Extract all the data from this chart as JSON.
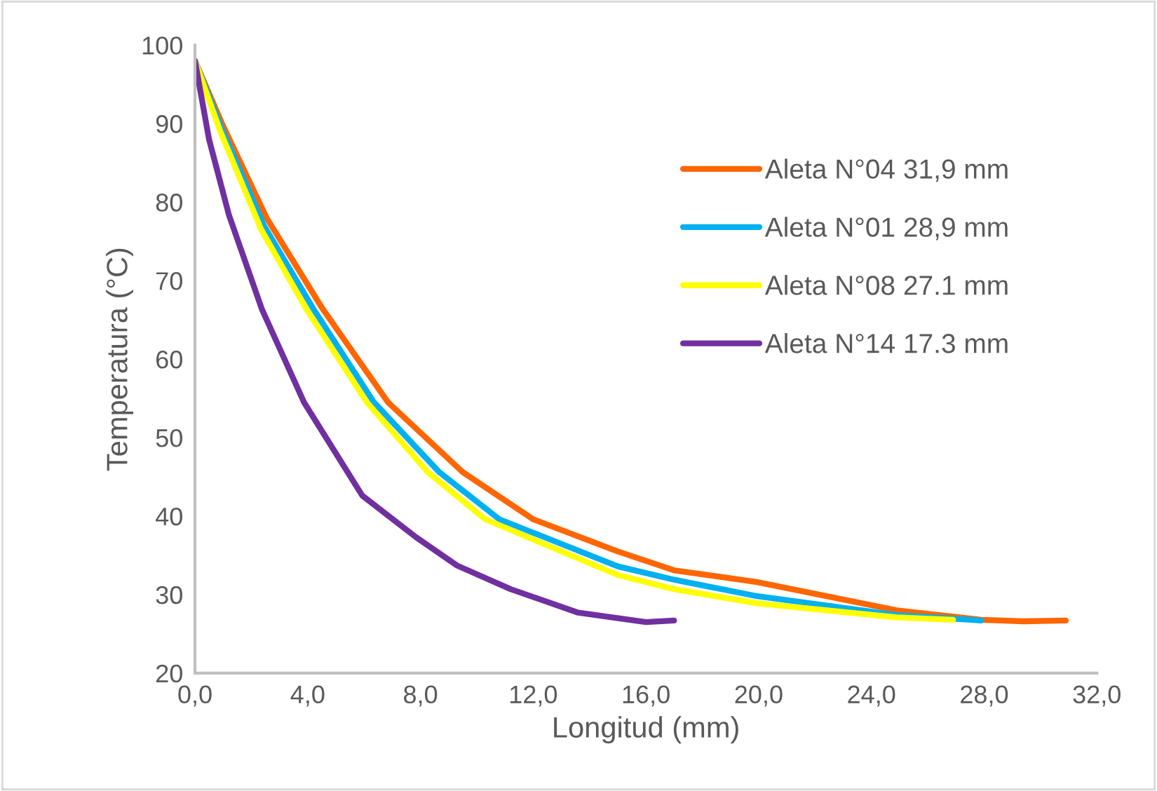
{
  "chart_data": {
    "type": "line",
    "xlabel": "Longitud (mm)",
    "ylabel": "Temperatura (°C)",
    "xlim": [
      0,
      32
    ],
    "ylim": [
      20,
      100
    ],
    "xticks": [
      {
        "value": 0,
        "label": "0,0"
      },
      {
        "value": 4,
        "label": "4,0"
      },
      {
        "value": 8,
        "label": "8,0"
      },
      {
        "value": 12,
        "label": "12,0"
      },
      {
        "value": 16,
        "label": "16,0"
      },
      {
        "value": 20,
        "label": "20,0"
      },
      {
        "value": 24,
        "label": "24,0"
      },
      {
        "value": 28,
        "label": "28,0"
      },
      {
        "value": 32,
        "label": "32,0"
      }
    ],
    "yticks": [
      20,
      30,
      40,
      50,
      60,
      70,
      80,
      90,
      100
    ],
    "grid": false,
    "legend": "right",
    "marker": "none",
    "line_style": "solid",
    "series": [
      {
        "name": "Aleta N°04 31,9 mm",
        "color": "#ff6600",
        "x": [
          0,
          0.96,
          2.54,
          4.53,
          6.85,
          9.5,
          12.0,
          15.0,
          17.0,
          19.95,
          24.9,
          27.9,
          29.4,
          30.9
        ],
        "values": [
          98,
          90,
          78,
          66.4,
          54.5,
          45.6,
          39.6,
          35.5,
          33.1,
          31.6,
          28.0,
          26.8,
          26.6,
          26.7
        ]
      },
      {
        "name": "Aleta N°01 28,9 mm",
        "color": "#00b0f0",
        "x": [
          0,
          0.93,
          2.45,
          4.2,
          6.35,
          8.67,
          10.8,
          15.0,
          17.0,
          19.95,
          24.9,
          27.9
        ],
        "values": [
          98,
          89.5,
          77,
          66.4,
          54.5,
          45.6,
          39.6,
          33.6,
          31.9,
          29.8,
          27.4,
          26.7
        ]
      },
      {
        "name": "Aleta N°08 27.1 mm",
        "color": "#ffff00",
        "x": [
          0,
          0.9,
          2.35,
          3.95,
          6.1,
          8.26,
          10.3,
          15.0,
          17.0,
          19.95,
          24.9,
          26.9
        ],
        "values": [
          98,
          89,
          76.5,
          66.4,
          54.5,
          45.6,
          39.6,
          32.5,
          30.7,
          28.9,
          27.1,
          26.8
        ]
      },
      {
        "name": "Aleta N°14 17.3 mm",
        "color": "#7030a0",
        "x": [
          0,
          0.5,
          1.21,
          2.37,
          3.87,
          5.94,
          7.85,
          9.3,
          11.2,
          13.6,
          16.0,
          17.0
        ],
        "values": [
          98,
          88,
          78.3,
          66.4,
          54.5,
          42.6,
          37.3,
          33.7,
          30.7,
          27.7,
          26.5,
          26.7
        ]
      }
    ]
  }
}
